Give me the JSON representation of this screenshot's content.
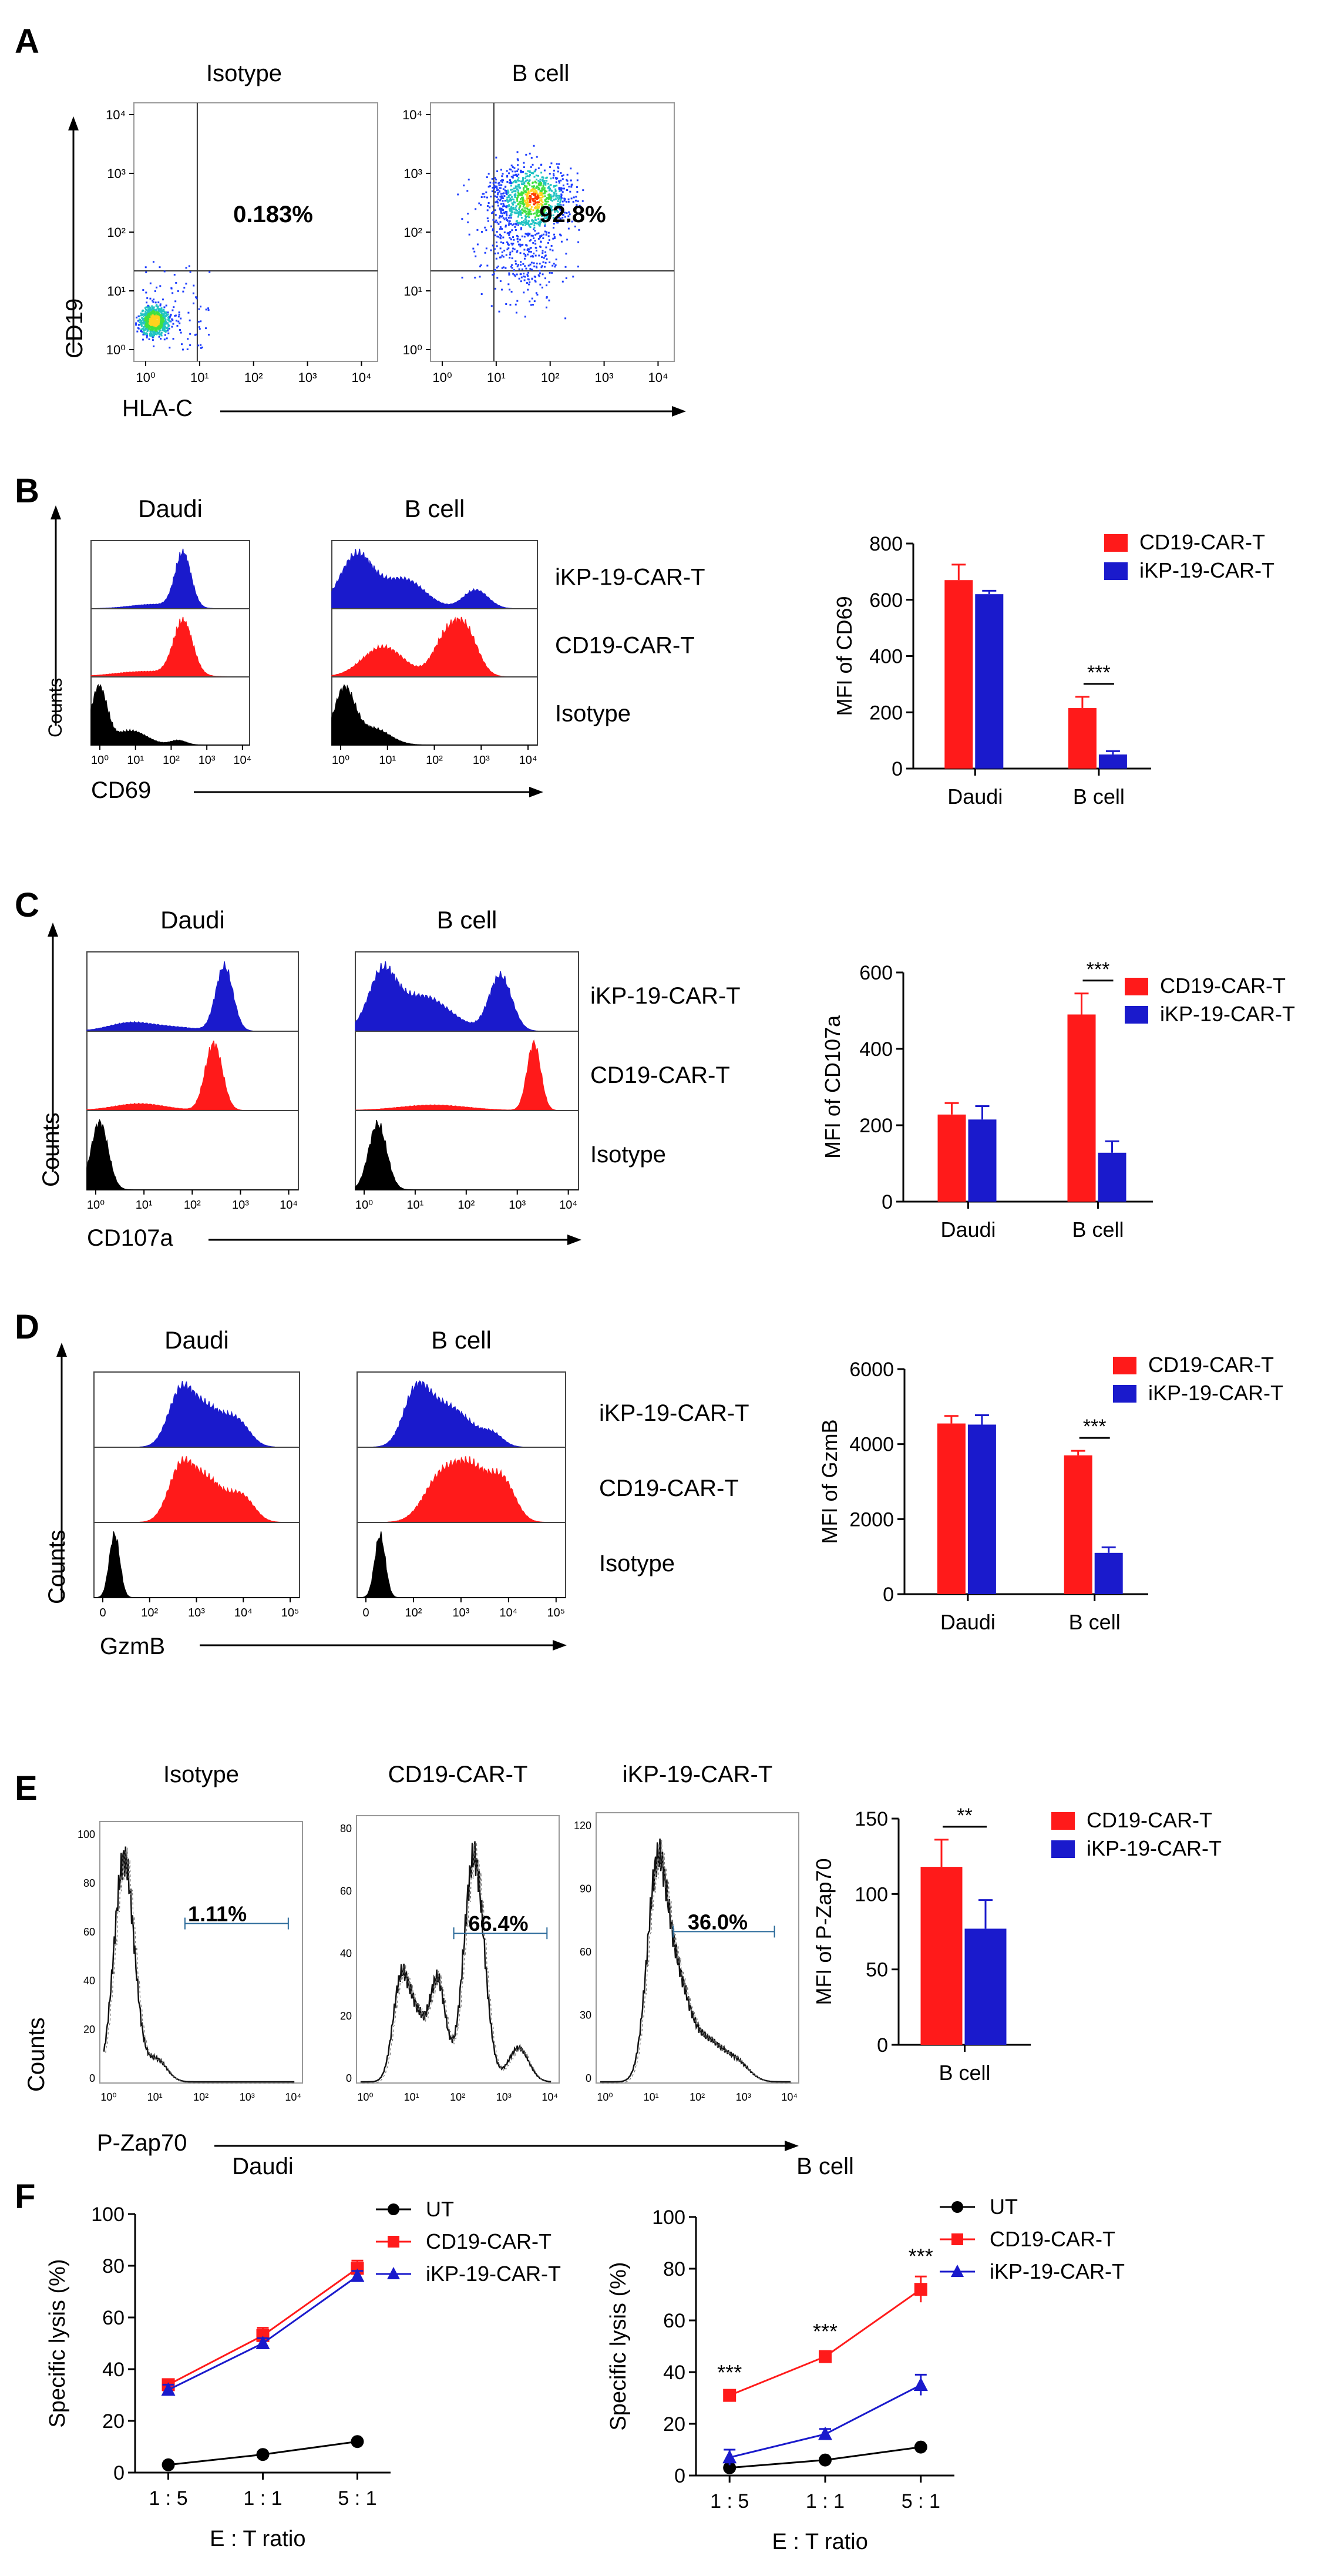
{
  "colors": {
    "red": "#ff1a1a",
    "blue": "#1a1acc",
    "black": "#000000"
  },
  "panelA": {
    "letter": "A",
    "titles": [
      "Isotype",
      "B cell"
    ],
    "percents": [
      "0.183%",
      "92.8%"
    ],
    "xlabel": "HLA-C",
    "ylabel": "CD19",
    "ticks": [
      "10⁰",
      "10¹",
      "10²",
      "10³",
      "10⁴"
    ]
  },
  "panelB": {
    "letter": "B",
    "titles": [
      "Daudi",
      "B cell"
    ],
    "row_labels": [
      "iKP-19-CAR-T",
      "CD19-CAR-T",
      "Isotype"
    ],
    "xlabel": "CD69",
    "ylabel": "Counts",
    "ticks": [
      "10⁰",
      "10¹",
      "10²",
      "10³",
      "10⁴"
    ]
  },
  "panelC": {
    "letter": "C",
    "titles": [
      "Daudi",
      "B cell"
    ],
    "row_labels": [
      "iKP-19-CAR-T",
      "CD19-CAR-T",
      "Isotype"
    ],
    "xlabel": "CD107a",
    "ylabel": "Counts",
    "ticks": [
      "10⁰",
      "10¹",
      "10²",
      "10³",
      "10⁴"
    ]
  },
  "panelD": {
    "letter": "D",
    "titles": [
      "Daudi",
      "B cell"
    ],
    "row_labels": [
      "iKP-19-CAR-T",
      "CD19-CAR-T",
      "Isotype"
    ],
    "xlabel": "GzmB",
    "ylabel": "Counts",
    "ticks": [
      "0",
      "10²",
      "10³",
      "10⁴",
      "10⁵"
    ]
  },
  "panelE": {
    "letter": "E",
    "titles": [
      "Isotype",
      "CD19-CAR-T",
      "iKP-19-CAR-T"
    ],
    "percents": [
      "1.11%",
      "66.4%",
      "36.0%"
    ],
    "xlabel": "P-Zap70",
    "ylabel": "Counts",
    "ticks": [
      "10⁰",
      "10¹",
      "10²",
      "10³",
      "10⁴"
    ],
    "yticks": [
      [
        "0",
        "20",
        "40",
        "60",
        "80",
        "100"
      ],
      [
        "0",
        "20",
        "40",
        "60",
        "80"
      ],
      [
        "0",
        "30",
        "60",
        "90",
        "120"
      ]
    ]
  },
  "panelF": {
    "letter": "F"
  },
  "chart_data": [
    {
      "id": "B",
      "type": "bar",
      "ylabel": "MFI of CD69",
      "categories": [
        "Daudi",
        "B cell"
      ],
      "ylim": [
        0,
        800
      ],
      "yticks": [
        0,
        200,
        400,
        600,
        800
      ],
      "series": [
        {
          "name": "CD19-CAR-T",
          "values": [
            670,
            215
          ],
          "errors": [
            55,
            40
          ]
        },
        {
          "name": "iKP-19-CAR-T",
          "values": [
            620,
            50
          ],
          "errors": [
            12,
            12
          ]
        }
      ],
      "significance": [
        {
          "category": "B cell",
          "label": "***"
        }
      ]
    },
    {
      "id": "C",
      "type": "bar",
      "ylabel": "MFI of CD107a",
      "categories": [
        "Daudi",
        "B cell"
      ],
      "ylim": [
        0,
        600
      ],
      "yticks": [
        0,
        200,
        400,
        600
      ],
      "series": [
        {
          "name": "CD19-CAR-T",
          "values": [
            228,
            490
          ],
          "errors": [
            30,
            55
          ]
        },
        {
          "name": "iKP-19-CAR-T",
          "values": [
            215,
            128
          ],
          "errors": [
            35,
            30
          ]
        }
      ],
      "significance": [
        {
          "category": "B cell",
          "label": "***"
        }
      ]
    },
    {
      "id": "D",
      "type": "bar",
      "ylabel": "MFI of GzmB",
      "categories": [
        "Daudi",
        "B cell"
      ],
      "ylim": [
        0,
        6000
      ],
      "yticks": [
        0,
        2000,
        4000,
        6000
      ],
      "series": [
        {
          "name": "CD19-CAR-T",
          "values": [
            4550,
            3700
          ],
          "errors": [
            200,
            120
          ]
        },
        {
          "name": "iKP-19-CAR-T",
          "values": [
            4520,
            1100
          ],
          "errors": [
            250,
            150
          ]
        }
      ],
      "significance": [
        {
          "category": "B cell",
          "label": "***"
        }
      ]
    },
    {
      "id": "E",
      "type": "bar",
      "ylabel": "MFI of P-Zap70",
      "categories": [
        "B cell"
      ],
      "ylim": [
        0,
        150
      ],
      "yticks": [
        0,
        50,
        100,
        150
      ],
      "series": [
        {
          "name": "CD19-CAR-T",
          "values": [
            118
          ],
          "errors": [
            18
          ]
        },
        {
          "name": "iKP-19-CAR-T",
          "values": [
            77
          ],
          "errors": [
            19
          ]
        }
      ],
      "significance": [
        {
          "category": "B cell",
          "label": "**"
        }
      ]
    },
    {
      "id": "F1",
      "type": "line",
      "title": "Daudi",
      "xlabel": "E : T ratio",
      "ylabel": "Specific lysis (%)",
      "categories": [
        "1 : 5",
        "1 : 1",
        "5 : 1"
      ],
      "ylim": [
        0,
        100
      ],
      "yticks": [
        0,
        20,
        40,
        60,
        80,
        100
      ],
      "series": [
        {
          "name": "UT",
          "values": [
            3,
            7,
            12
          ],
          "errors": [
            0.5,
            0.5,
            0.5
          ],
          "marker": "circle"
        },
        {
          "name": "CD19-CAR-T",
          "values": [
            34,
            53,
            79
          ],
          "errors": [
            2,
            3,
            3
          ],
          "marker": "square"
        },
        {
          "name": "iKP-19-CAR-T",
          "values": [
            32,
            50,
            76
          ],
          "errors": [
            2,
            2,
            2
          ],
          "marker": "triangle"
        }
      ],
      "annotations": []
    },
    {
      "id": "F2",
      "type": "line",
      "title": "B cell",
      "xlabel": "E : T ratio",
      "ylabel": "Specific lysis (%)",
      "categories": [
        "1 : 5",
        "1 : 1",
        "5 : 1"
      ],
      "ylim": [
        0,
        100
      ],
      "yticks": [
        0,
        20,
        40,
        60,
        80,
        100
      ],
      "series": [
        {
          "name": "UT",
          "values": [
            3,
            6,
            11
          ],
          "errors": [
            0.5,
            0.5,
            0.5
          ],
          "marker": "circle"
        },
        {
          "name": "CD19-CAR-T",
          "values": [
            31,
            46,
            72
          ],
          "errors": [
            1,
            2,
            5
          ],
          "marker": "square"
        },
        {
          "name": "iKP-19-CAR-T",
          "values": [
            7,
            16,
            35
          ],
          "errors": [
            3,
            2,
            4
          ],
          "marker": "triangle"
        }
      ],
      "annotations": [
        "***",
        "***",
        "***"
      ]
    }
  ]
}
